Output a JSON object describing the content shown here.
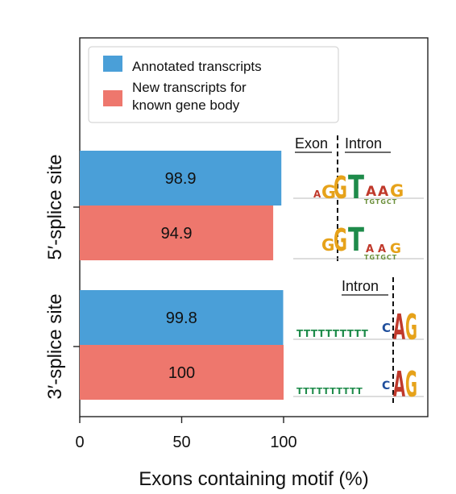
{
  "chart_data": {
    "type": "bar",
    "orientation": "horizontal",
    "title": "",
    "xlabel": "Exons containing motif (%)",
    "ylabel": "",
    "xlim": [
      0,
      100
    ],
    "xticks": [
      0,
      50,
      100
    ],
    "categories": [
      "5′-splice site",
      "3′-splice site"
    ],
    "series": [
      {
        "name": "Annotated transcripts",
        "color": "#4A9FD8",
        "values": [
          98.9,
          99.8
        ],
        "labels": [
          "98.9",
          "99.8"
        ]
      },
      {
        "name": "New transcripts for known gene body",
        "color": "#EE776D",
        "values": [
          94.9,
          100
        ],
        "labels": [
          "94.9",
          "100"
        ]
      }
    ],
    "legend": {
      "position": "top-left",
      "entries": [
        {
          "label_lines": [
            "Annotated transcripts"
          ],
          "color": "#4A9FD8"
        },
        {
          "label_lines": [
            "New transcripts for",
            "known gene body"
          ],
          "color": "#EE776D"
        }
      ]
    },
    "grid": false,
    "motif_annotations": {
      "five_prime": {
        "left_label": "Exon",
        "right_label": "Intron"
      },
      "three_prime": {
        "right_label": "Intron"
      }
    }
  }
}
